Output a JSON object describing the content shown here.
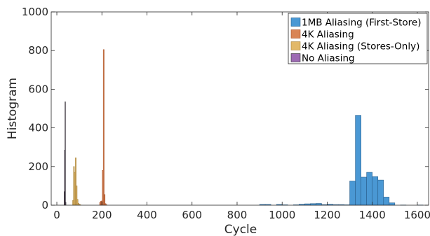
{
  "chart_data": {
    "type": "bar",
    "title": "",
    "xlabel": "Cycle",
    "ylabel": "Histogram",
    "xlim": [
      -25,
      1650
    ],
    "ylim": [
      0,
      1000
    ],
    "x_ticks": [
      0,
      200,
      400,
      600,
      800,
      1000,
      1200,
      1400,
      1600
    ],
    "y_ticks": [
      0,
      200,
      400,
      600,
      800,
      1000
    ],
    "grid": false,
    "legend_position": "top-right",
    "series": [
      {
        "name": "1MB Aliasing (First-Store)",
        "color": "#4a98d4",
        "edge": "#2a5f8c",
        "bin_width": 25,
        "bins": [
          {
            "x": 900,
            "y": 4
          },
          {
            "x": 925,
            "y": 4
          },
          {
            "x": 975,
            "y": 4
          },
          {
            "x": 1000,
            "y": 2
          },
          {
            "x": 1050,
            "y": 2
          },
          {
            "x": 1075,
            "y": 5
          },
          {
            "x": 1100,
            "y": 7
          },
          {
            "x": 1125,
            "y": 8
          },
          {
            "x": 1150,
            "y": 9
          },
          {
            "x": 1175,
            "y": 3
          },
          {
            "x": 1200,
            "y": 5
          },
          {
            "x": 1225,
            "y": 3
          },
          {
            "x": 1250,
            "y": 3
          },
          {
            "x": 1275,
            "y": 2
          },
          {
            "x": 1300,
            "y": 125
          },
          {
            "x": 1325,
            "y": 465
          },
          {
            "x": 1350,
            "y": 145
          },
          {
            "x": 1375,
            "y": 170
          },
          {
            "x": 1400,
            "y": 148
          },
          {
            "x": 1425,
            "y": 130
          },
          {
            "x": 1450,
            "y": 42
          },
          {
            "x": 1475,
            "y": 12
          },
          {
            "x": 1525,
            "y": 1
          },
          {
            "x": 1600,
            "y": 1
          }
        ]
      },
      {
        "name": "4K Aliasing",
        "color": "#d98455",
        "edge": "#a8532b",
        "bin_width": 4,
        "bins": [
          {
            "x": 190,
            "y": 15
          },
          {
            "x": 194,
            "y": 20
          },
          {
            "x": 198,
            "y": 22
          },
          {
            "x": 202,
            "y": 180
          },
          {
            "x": 206,
            "y": 805
          },
          {
            "x": 210,
            "y": 55
          },
          {
            "x": 214,
            "y": 8
          },
          {
            "x": 218,
            "y": 3
          }
        ]
      },
      {
        "name": "4K Aliasing (Stores-Only)",
        "color": "#e2b868",
        "edge": "#a7843f",
        "bin_width": 4,
        "bins": [
          {
            "x": 70,
            "y": 25
          },
          {
            "x": 74,
            "y": 200
          },
          {
            "x": 78,
            "y": 170
          },
          {
            "x": 82,
            "y": 245
          },
          {
            "x": 86,
            "y": 100
          },
          {
            "x": 90,
            "y": 30
          },
          {
            "x": 94,
            "y": 10
          },
          {
            "x": 98,
            "y": 5
          },
          {
            "x": 102,
            "y": 3
          }
        ]
      },
      {
        "name": "No Aliasing",
        "color": "#9d6bb3",
        "edge": "#2f2f2f",
        "bin_width": 2,
        "bins": [
          {
            "x": 32,
            "y": 70
          },
          {
            "x": 34,
            "y": 285
          },
          {
            "x": 36,
            "y": 535
          },
          {
            "x": 38,
            "y": 15
          }
        ]
      }
    ]
  }
}
